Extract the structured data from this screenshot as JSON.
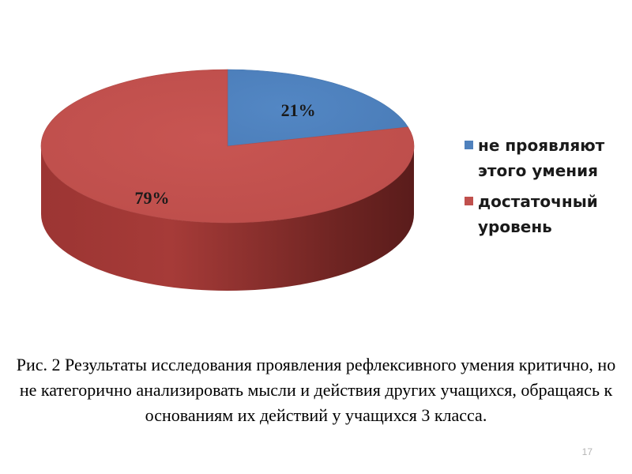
{
  "chart_data": {
    "type": "pie",
    "categories": [
      "не проявляют этого умения",
      "достаточный уровень"
    ],
    "values": [
      21,
      79
    ],
    "data_labels": [
      "21%",
      "79%"
    ],
    "colors": [
      "#4f81bd",
      "#c0504d"
    ],
    "legend_position": "right",
    "legend": [
      {
        "lines": [
          "не проявляют",
          "этого умения"
        ],
        "color": "#4f81bd"
      },
      {
        "lines": [
          "достаточный",
          "уровень"
        ],
        "color": "#c0504d"
      }
    ],
    "style": "3d"
  },
  "caption": "Рис. 2 Результаты исследования проявления рефлексивного умения критично, но не категорично анализировать мысли и действия других учащихся, обращаясь к основаниям их действий у учащихся 3 класса.",
  "page_number": "17"
}
